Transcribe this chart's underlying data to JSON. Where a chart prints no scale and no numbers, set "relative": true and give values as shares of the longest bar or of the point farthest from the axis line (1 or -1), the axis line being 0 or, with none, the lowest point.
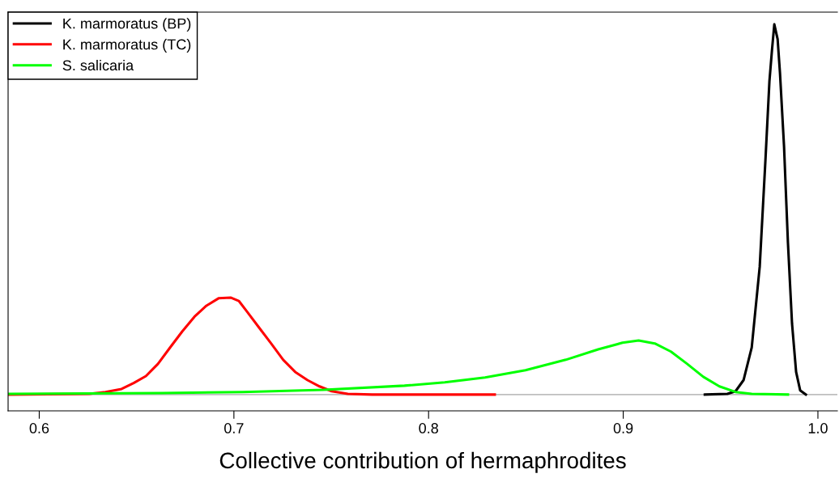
{
  "chart_data": {
    "type": "line",
    "relative": true,
    "xlabel": "Collective contribution of hermaphrodites",
    "xlim": [
      0.584,
      1.01
    ],
    "xticks": [
      0.6,
      0.7,
      0.8,
      0.9,
      {
        "value": 1,
        "label": "1.0"
      }
    ],
    "legend": "top left",
    "grid": false,
    "tick_labels": "x",
    "ref_lines": [
      {
        "axis": "y",
        "value": 0,
        "color": "#bebebe"
      }
    ],
    "series": [
      {
        "name": "K. marmoratus (BP)",
        "color": "#000000",
        "x": [
          0.9419,
          0.9535,
          0.9577,
          0.9618,
          0.966,
          0.9701,
          0.973,
          0.9751,
          0.9764,
          0.9776,
          0.9793,
          0.9805,
          0.9826,
          0.9846,
          0.9867,
          0.9888,
          0.9909,
          0.9938
        ],
        "values": [
          0,
          0.002,
          0.009,
          0.039,
          0.127,
          0.345,
          0.629,
          0.847,
          0.93,
          1.0,
          0.96,
          0.87,
          0.67,
          0.41,
          0.192,
          0.061,
          0.011,
          0
        ]
      },
      {
        "name": "K. marmoratus (TC)",
        "color": "#ff0000",
        "x": [
          0.5842,
          0.6257,
          0.634,
          0.6423,
          0.6485,
          0.6548,
          0.661,
          0.6672,
          0.6734,
          0.6797,
          0.6859,
          0.6921,
          0.6983,
          0.7025,
          0.7066,
          0.7129,
          0.7191,
          0.7253,
          0.7315,
          0.7378,
          0.744,
          0.7502,
          0.7585,
          0.771,
          0.834
        ],
        "values": [
          0,
          0.002,
          0.007,
          0.015,
          0.031,
          0.05,
          0.083,
          0.127,
          0.17,
          0.21,
          0.24,
          0.26,
          0.262,
          0.253,
          0.225,
          0.181,
          0.138,
          0.094,
          0.061,
          0.039,
          0.022,
          0.009,
          0.002,
          0,
          0
        ]
      },
      {
        "name": "S. salicaria",
        "color": "#00ff00",
        "x": [
          0.5842,
          0.6631,
          0.7046,
          0.7461,
          0.7876,
          0.8083,
          0.829,
          0.8498,
          0.8705,
          0.8871,
          0.8996,
          0.9079,
          0.9162,
          0.9245,
          0.9328,
          0.9411,
          0.9494,
          0.9577,
          0.966,
          0.9846
        ],
        "values": [
          0.002,
          0.004,
          0.007,
          0.013,
          0.024,
          0.033,
          0.046,
          0.066,
          0.094,
          0.122,
          0.14,
          0.146,
          0.138,
          0.116,
          0.083,
          0.048,
          0.022,
          0.007,
          0.002,
          0
        ]
      }
    ]
  }
}
